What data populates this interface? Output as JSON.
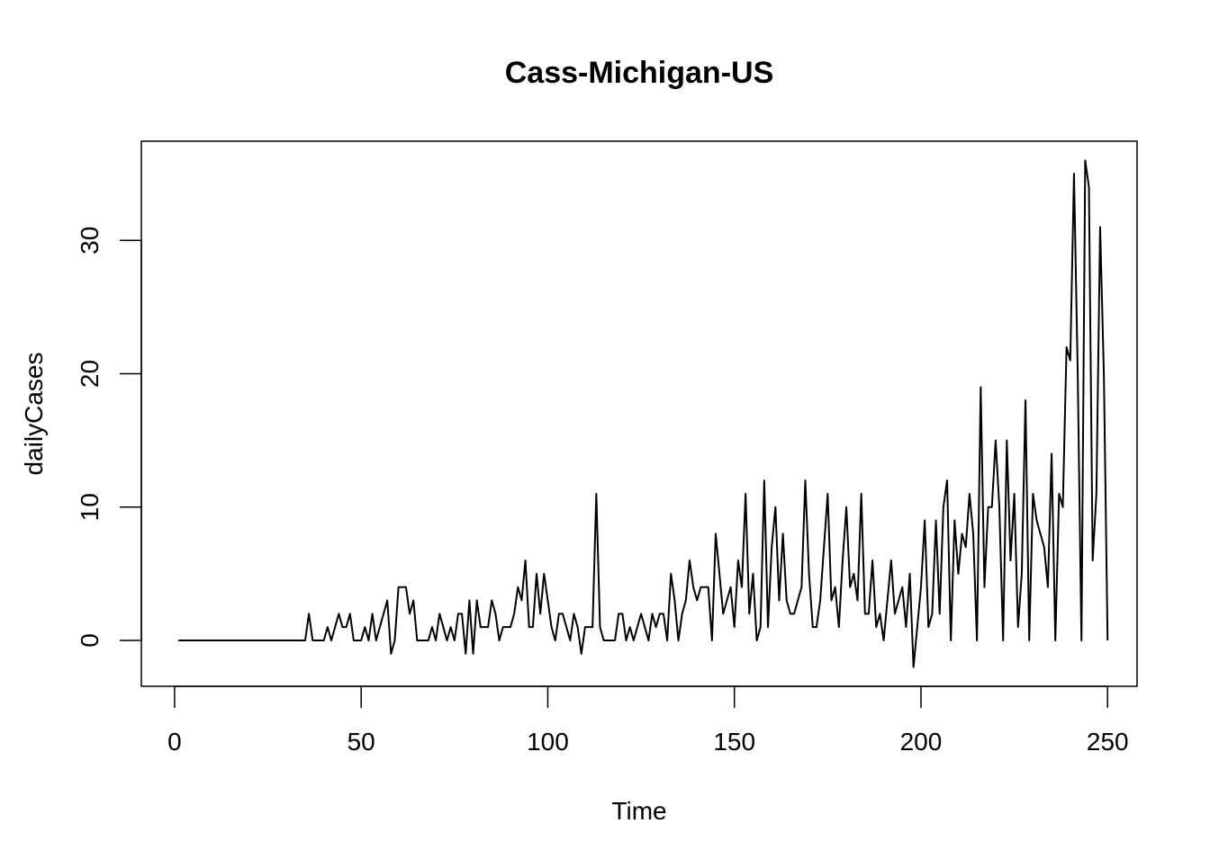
{
  "chart_data": {
    "type": "line",
    "title": "Cass-Michigan-US",
    "xlabel": "Time",
    "ylabel": "dailyCases",
    "xlim": [
      -8.9,
      257.9
    ],
    "ylim": [
      -3.44,
      37.44
    ],
    "xticks": [
      0,
      50,
      100,
      150,
      200,
      250
    ],
    "yticks": [
      0,
      10,
      20,
      30
    ],
    "grid": false,
    "legend": "none",
    "line_color": "#000000",
    "series": [
      {
        "x_start": 1,
        "values": [
          0,
          0,
          0,
          0,
          0,
          0,
          0,
          0,
          0,
          0,
          0,
          0,
          0,
          0,
          0,
          0,
          0,
          0,
          0,
          0,
          0,
          0,
          0,
          0,
          0,
          0,
          0,
          0,
          0,
          0,
          0,
          0,
          0,
          0,
          0,
          2,
          0,
          0,
          0,
          0,
          1,
          0,
          1,
          2,
          1,
          1,
          2,
          0,
          0,
          0,
          1,
          0,
          2,
          0,
          1,
          2,
          3,
          -1,
          0,
          4,
          4,
          4,
          2,
          3,
          0,
          0,
          0,
          0,
          1,
          0,
          2,
          1,
          0,
          1,
          0,
          2,
          2,
          -1,
          3,
          -1,
          3,
          1,
          1,
          1,
          3,
          2,
          0,
          1,
          1,
          1,
          2,
          4,
          3,
          6,
          1,
          1,
          5,
          2,
          5,
          3,
          1,
          0,
          2,
          2,
          1,
          0,
          2,
          1,
          -1,
          1,
          1,
          1,
          11,
          1,
          0,
          0,
          0,
          0,
          2,
          2,
          0,
          1,
          0,
          1,
          2,
          1,
          0,
          2,
          1,
          2,
          2,
          0,
          5,
          3,
          0,
          2,
          3,
          6,
          4,
          3,
          4,
          4,
          4,
          0,
          8,
          5,
          2,
          3,
          4,
          1,
          6,
          4,
          11,
          2,
          5,
          0,
          1,
          12,
          1,
          7,
          10,
          3,
          8,
          3,
          2,
          2,
          3,
          4,
          12,
          5,
          1,
          1,
          3,
          7,
          11,
          3,
          4,
          1,
          6,
          10,
          4,
          5,
          3,
          11,
          2,
          2,
          6,
          1,
          2,
          0,
          3,
          6,
          2,
          3,
          4,
          1,
          5,
          -2,
          1,
          4,
          9,
          1,
          2,
          9,
          2,
          10,
          12,
          0,
          9,
          5,
          8,
          7,
          11,
          8,
          0,
          19,
          4,
          10,
          10,
          15,
          10,
          0,
          15,
          6,
          11,
          1,
          5,
          18,
          0,
          11,
          9,
          8,
          7,
          4,
          14,
          0,
          11,
          10,
          22,
          21,
          35,
          20,
          0,
          36,
          34,
          6,
          11,
          31,
          20,
          0
        ]
      }
    ]
  }
}
